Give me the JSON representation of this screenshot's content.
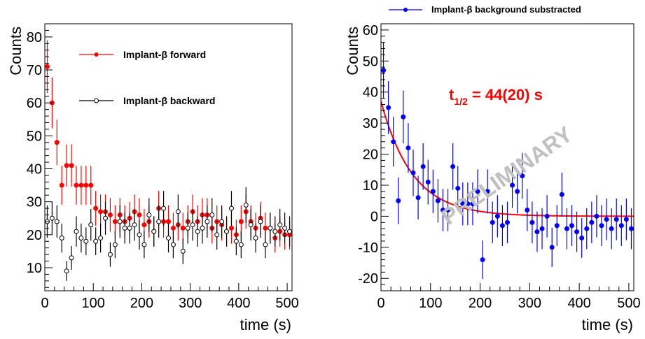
{
  "chart_data": [
    {
      "type": "scatter",
      "xlabel": "time (s)",
      "ylabel": "Counts",
      "xlim": [
        0,
        510
      ],
      "ylim": [
        3,
        84
      ],
      "xticks": [
        0,
        100,
        200,
        300,
        400,
        500
      ],
      "yticks": [
        10,
        20,
        30,
        40,
        50,
        60,
        70,
        80
      ],
      "legend_placement": "top-center",
      "series": [
        {
          "name": "Implant-β forward",
          "color": "#ff0000",
          "marker": "filled-circle",
          "x": [
            5,
            15,
            25,
            35,
            45,
            55,
            65,
            75,
            85,
            95,
            105,
            115,
            125,
            135,
            145,
            155,
            165,
            175,
            185,
            195,
            205,
            215,
            225,
            235,
            245,
            255,
            265,
            275,
            285,
            295,
            305,
            315,
            325,
            335,
            345,
            355,
            365,
            375,
            385,
            395,
            405,
            415,
            425,
            435,
            445,
            455,
            465,
            475,
            485,
            495,
            505
          ],
          "y": [
            71,
            60,
            48,
            35,
            41,
            41,
            35,
            35,
            35,
            35,
            28,
            27,
            27,
            26,
            24,
            26,
            24,
            25,
            27,
            26,
            23,
            24,
            21,
            28,
            24,
            24,
            22,
            23,
            22,
            24,
            27,
            24,
            26,
            26,
            22,
            24,
            23,
            21,
            22,
            20,
            24,
            27,
            24,
            22,
            25,
            22,
            22,
            19,
            21,
            20,
            20
          ],
          "err": [
            8,
            7.7,
            6.9,
            5.9,
            6.4,
            6.4,
            5.9,
            5.9,
            5.9,
            5.9,
            5.3,
            5.2,
            5.2,
            5.1,
            4.9,
            5.1,
            4.9,
            5,
            5.2,
            5.1,
            4.8,
            4.9,
            4.6,
            5.3,
            4.9,
            4.9,
            4.7,
            4.8,
            4.7,
            4.9,
            5.2,
            4.9,
            5.1,
            5.1,
            4.7,
            4.9,
            4.8,
            4.6,
            4.7,
            4.5,
            4.9,
            5.2,
            4.9,
            4.7,
            5,
            4.7,
            4.7,
            4.4,
            4.6,
            4.5,
            4.5
          ]
        },
        {
          "name": "Implant-β backward",
          "color": "#000000",
          "marker": "open-circle",
          "x": [
            5,
            15,
            25,
            35,
            45,
            55,
            65,
            75,
            85,
            95,
            105,
            115,
            125,
            135,
            145,
            155,
            165,
            175,
            185,
            195,
            205,
            215,
            225,
            235,
            245,
            255,
            265,
            275,
            285,
            295,
            305,
            315,
            325,
            335,
            345,
            355,
            365,
            375,
            385,
            395,
            405,
            415,
            425,
            435,
            445,
            455,
            465,
            475,
            485,
            495,
            505
          ],
          "y": [
            24,
            25,
            24,
            19,
            9,
            13,
            21,
            19,
            18,
            23,
            18,
            19,
            25,
            14,
            17,
            24,
            22,
            22,
            23,
            20,
            17,
            26,
            21,
            24,
            28,
            19,
            17,
            27,
            15,
            22,
            23,
            21,
            22,
            24,
            26,
            20,
            24,
            21,
            28,
            18,
            17,
            29,
            23,
            19,
            24,
            17,
            22,
            21,
            23,
            22,
            21
          ],
          "err": [
            4.9,
            5,
            4.9,
            4.4,
            3,
            3.6,
            4.6,
            4.4,
            4.2,
            4.8,
            4.2,
            4.4,
            5,
            3.7,
            4.1,
            4.9,
            4.7,
            4.7,
            4.8,
            4.5,
            4.1,
            5.1,
            4.6,
            4.9,
            5.3,
            4.4,
            4.1,
            5.2,
            3.9,
            4.7,
            4.8,
            4.6,
            4.7,
            4.9,
            5.1,
            4.5,
            4.9,
            4.6,
            5.3,
            4.2,
            4.1,
            5.4,
            4.8,
            4.4,
            4.9,
            4.1,
            4.7,
            4.6,
            4.8,
            4.7,
            4.6
          ]
        }
      ]
    },
    {
      "type": "scatter",
      "xlabel": "time (s)",
      "ylabel": "Counts",
      "xlim": [
        0,
        510
      ],
      "ylim": [
        -24,
        62
      ],
      "xticks": [
        0,
        100,
        200,
        300,
        400,
        500
      ],
      "yticks": [
        -20,
        -10,
        0,
        10,
        20,
        30,
        40,
        50,
        60
      ],
      "legend_placement": "top",
      "annotation": {
        "text_main": "t",
        "text_sub": "1/2",
        "text_rest": " = 44(20) s",
        "color": "#ff0000"
      },
      "watermark": "PRELIMINARY",
      "fit": {
        "color": "#ff0000",
        "function": "A*exp(-ln2*t/T)+C",
        "A": 37,
        "T": 44,
        "C": 0,
        "x_range": [
          0,
          510
        ]
      },
      "series": [
        {
          "name": "Implant-β background substracted",
          "color": "#0000ff",
          "marker": "filled-circle",
          "x": [
            5,
            15,
            25,
            35,
            45,
            55,
            65,
            75,
            85,
            95,
            105,
            115,
            125,
            135,
            145,
            155,
            165,
            175,
            185,
            195,
            205,
            215,
            225,
            235,
            245,
            255,
            265,
            275,
            285,
            295,
            305,
            315,
            325,
            335,
            345,
            355,
            365,
            375,
            385,
            395,
            405,
            415,
            425,
            435,
            445,
            455,
            465,
            475,
            485,
            495,
            505
          ],
          "y": [
            47,
            35,
            24,
            5,
            32,
            22,
            14,
            6,
            16,
            11,
            8,
            5,
            2,
            2,
            16,
            9,
            4,
            4,
            4,
            8,
            -14,
            8,
            -2,
            0,
            -3,
            -2,
            10,
            8,
            13,
            2,
            -2,
            -5,
            -4,
            0,
            -10,
            -3,
            7,
            -4,
            -3,
            -5,
            -7,
            -4,
            -2,
            0,
            -3,
            -1,
            -4,
            -1,
            -3,
            -1,
            -4
          ],
          "err": [
            9,
            8.5,
            8,
            7.5,
            8.5,
            8,
            7.5,
            7,
            7.5,
            7.2,
            7,
            7,
            6.8,
            6.8,
            7.5,
            7.2,
            6.9,
            6.9,
            6.9,
            7.1,
            6.2,
            7.1,
            6.7,
            6.8,
            6.6,
            6.7,
            7.3,
            7.1,
            7.4,
            6.8,
            6.7,
            6.5,
            6.6,
            6.8,
            6.3,
            6.6,
            7.1,
            6.6,
            6.6,
            6.5,
            6.4,
            6.6,
            6.7,
            6.8,
            6.6,
            6.7,
            6.6,
            6.7,
            6.6,
            6.7,
            6.6
          ]
        }
      ]
    }
  ]
}
